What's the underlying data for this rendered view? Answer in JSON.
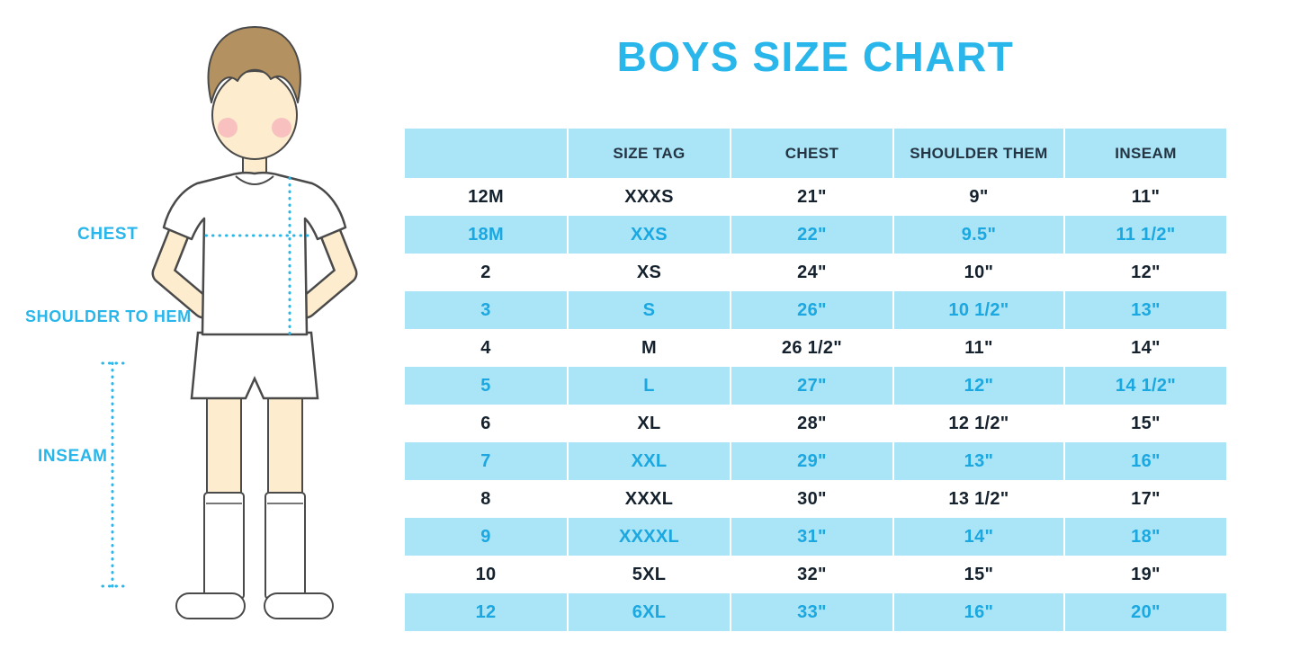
{
  "title": "BOYS SIZE CHART",
  "colors": {
    "accent_cyan": "#29b6ea",
    "row_cyan": "#a9e4f7",
    "text_dark": "#15222e",
    "text_blue": "#1ba7e0",
    "header_text": "#243442",
    "skin": "#fdeccd",
    "hair": "#b39160",
    "outline": "#4a4a4a",
    "cheek": "#f5afba"
  },
  "diagram": {
    "labels": {
      "chest": "CHEST",
      "shoulder_to_hem": "SHOULDER TO HEM",
      "inseam": "INSEAM"
    }
  },
  "chart_data": {
    "type": "table",
    "title": "BOYS SIZE CHART",
    "columns": [
      "",
      "SIZE TAG",
      "CHEST",
      "SHOULDER THEM",
      "INSEAM"
    ],
    "rows": [
      [
        "12M",
        "XXXS",
        "21\"",
        "9\"",
        "11\""
      ],
      [
        "18M",
        "XXS",
        "22\"",
        "9.5\"",
        "11 1/2\""
      ],
      [
        "2",
        "XS",
        "24\"",
        "10\"",
        "12\""
      ],
      [
        "3",
        "S",
        "26\"",
        "10 1/2\"",
        "13\""
      ],
      [
        "4",
        "M",
        "26 1/2\"",
        "11\"",
        "14\""
      ],
      [
        "5",
        "L",
        "27\"",
        "12\"",
        "14 1/2\""
      ],
      [
        "6",
        "XL",
        "28\"",
        "12 1/2\"",
        "15\""
      ],
      [
        "7",
        "XXL",
        "29\"",
        "13\"",
        "16\""
      ],
      [
        "8",
        "XXXL",
        "30\"",
        "13 1/2\"",
        "17\""
      ],
      [
        "9",
        "XXXXL",
        "31\"",
        "14\"",
        "18\""
      ],
      [
        "10",
        "5XL",
        "32\"",
        "15\"",
        "19\""
      ],
      [
        "12",
        "6XL",
        "33\"",
        "16\"",
        "20\""
      ]
    ]
  }
}
